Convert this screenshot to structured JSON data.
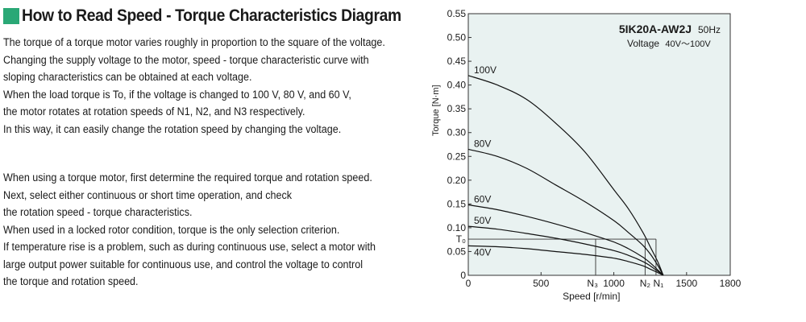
{
  "heading": {
    "text": "How to Read Speed - Torque Characteristics Diagram",
    "accent_color": "#2aa876"
  },
  "paragraph1": [
    " The torque of a torque motor varies roughly in proportion to the square of the voltage.",
    "Changing the supply voltage to the motor, speed - torque characteristic curve with",
    "sloping characteristics can be obtained at each voltage.",
    "When the load torque is To, if the voltage is changed to 100 V, 80 V, and 60 V,",
    "the motor rotates at rotation speeds of N1, N2, and N3 respectively.",
    "In this way, it can easily change the rotation speed by changing the voltage."
  ],
  "paragraph2": [
    " When using a torque motor, first determine the required torque and rotation speed.",
    " Next, select either continuous or short time operation, and check",
    " the rotation speed - torque characteristics.",
    " When used in a locked rotor condition, torque is the only selection criterion.",
    "If temperature rise is a problem, such as during continuous use, select a motor with",
    "large output power suitable for continuous use, and control the voltage to control",
    "the torque and rotation speed."
  ],
  "chart_data": {
    "type": "line",
    "model": "5IK20A-AW2J",
    "frequency": "50Hz",
    "voltage_label": "Voltage",
    "voltage_range": "40V～100V",
    "xlabel": "Speed [r/min]",
    "ylabel": "Torque [N·m]",
    "xlim": [
      0,
      1800
    ],
    "ylim": [
      0,
      0.55
    ],
    "x_ticks": [
      "0",
      "500",
      "1000",
      "1500",
      "1800"
    ],
    "y_ticks": [
      "0",
      "0.05",
      "0.10",
      "0.15",
      "0.20",
      "0.25",
      "0.30",
      "0.35",
      "0.40",
      "0.45",
      "0.50",
      "0.55"
    ],
    "plot_background": "#e9f2f1",
    "series": [
      {
        "name": "100V",
        "x": [
          0,
          200,
          400,
          600,
          800,
          1000,
          1100,
          1200,
          1250,
          1300,
          1340
        ],
        "y": [
          0.42,
          0.4,
          0.37,
          0.32,
          0.26,
          0.18,
          0.14,
          0.09,
          0.06,
          0.03,
          0
        ]
      },
      {
        "name": "80V",
        "x": [
          0,
          200,
          400,
          600,
          800,
          1000,
          1100,
          1200,
          1250,
          1300,
          1340
        ],
        "y": [
          0.265,
          0.25,
          0.225,
          0.19,
          0.155,
          0.115,
          0.09,
          0.063,
          0.045,
          0.022,
          0
        ]
      },
      {
        "name": "60V",
        "x": [
          0,
          200,
          400,
          600,
          800,
          1000,
          1100,
          1200,
          1250,
          1300,
          1340
        ],
        "y": [
          0.148,
          0.138,
          0.124,
          0.108,
          0.09,
          0.07,
          0.056,
          0.038,
          0.026,
          0.012,
          0
        ]
      },
      {
        "name": "50V",
        "x": [
          0,
          200,
          400,
          600,
          800,
          1000,
          1100,
          1200,
          1250,
          1300,
          1340
        ],
        "y": [
          0.103,
          0.097,
          0.088,
          0.078,
          0.066,
          0.052,
          0.042,
          0.029,
          0.02,
          0.009,
          0
        ]
      },
      {
        "name": "40V",
        "x": [
          0,
          200,
          400,
          600,
          800,
          1000,
          1100,
          1200,
          1250,
          1300,
          1340
        ],
        "y": [
          0.062,
          0.06,
          0.056,
          0.05,
          0.044,
          0.036,
          0.029,
          0.02,
          0.013,
          0.006,
          0
        ]
      }
    ],
    "load_torque": {
      "label": "T₀",
      "y": 0.076
    },
    "speed_markers": [
      {
        "label": "N₃",
        "x": 875
      },
      {
        "label": "N₂",
        "x": 1215
      },
      {
        "label": "N₁",
        "x": 1290
      }
    ]
  }
}
